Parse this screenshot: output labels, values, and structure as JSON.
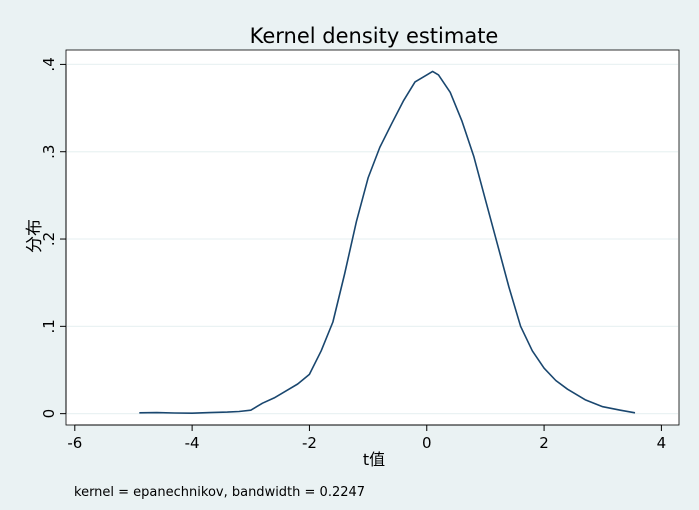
{
  "chart_data": {
    "type": "line",
    "title": "Kernel density estimate",
    "xlabel": "t值",
    "ylabel": "分布",
    "note": "kernel = epanechnikov, bandwidth = 0.2247",
    "xlim": [
      -6.15,
      4.3
    ],
    "ylim": [
      -0.013,
      0.4165
    ],
    "xticks": [
      -6,
      -4,
      -2,
      0,
      2,
      4
    ],
    "xtick_labels": [
      "-6",
      "-4",
      "-2",
      "0",
      "2",
      "4"
    ],
    "yticks": [
      0,
      0.1,
      0.2,
      0.3,
      0.4
    ],
    "ytick_labels": [
      "0",
      ".1",
      ".2",
      ".3",
      ".4"
    ],
    "grid": "horizontal",
    "legend": "none",
    "line_color": "#1a476f",
    "background_color": "#eaf2f3",
    "plot_background_color": "#ffffff",
    "grid_color": "#eaf2f3",
    "series": [
      {
        "x": [
          -4.9,
          -4.6,
          -4.3,
          -4.0,
          -3.7,
          -3.4,
          -3.2,
          -3.0,
          -2.9,
          -2.8,
          -2.6,
          -2.4,
          -2.2,
          -2.0,
          -1.8,
          -1.6,
          -1.4,
          -1.2,
          -1.0,
          -0.8,
          -0.6,
          -0.4,
          -0.2,
          0.0,
          0.1,
          0.2,
          0.4,
          0.6,
          0.8,
          1.0,
          1.2,
          1.4,
          1.6,
          1.8,
          2.0,
          2.2,
          2.4,
          2.7,
          3.0,
          3.3,
          3.55
        ],
        "y": [
          0.001,
          0.0012,
          0.0008,
          0.0005,
          0.0012,
          0.0018,
          0.0025,
          0.004,
          0.008,
          0.012,
          0.018,
          0.026,
          0.034,
          0.045,
          0.072,
          0.105,
          0.16,
          0.22,
          0.27,
          0.305,
          0.332,
          0.358,
          0.38,
          0.388,
          0.392,
          0.388,
          0.368,
          0.335,
          0.295,
          0.245,
          0.195,
          0.145,
          0.1,
          0.072,
          0.052,
          0.038,
          0.028,
          0.016,
          0.008,
          0.004,
          0.001
        ]
      }
    ]
  }
}
